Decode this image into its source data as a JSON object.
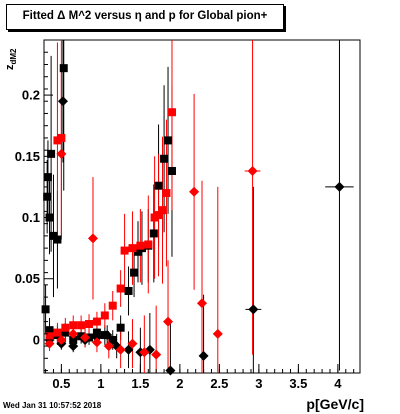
{
  "header": {
    "title": "Fitted Δ M^2 versus η and p for Global pion+"
  },
  "footer": {
    "timestamp": "Wed Jan 31 10:57:52 2018"
  },
  "chart_data": {
    "type": "scatter",
    "title": "Fitted Δ M^2 versus η and p for Global pion+",
    "xlabel": "p[GeV/c]",
    "ylabel": "z_dM2",
    "ylabel_main": "z",
    "ylabel_sub": "dM2",
    "xlim": [
      0.28,
      4.28
    ],
    "ylim": [
      -0.027,
      0.245
    ],
    "xticks": [
      0.5,
      1,
      1.5,
      2,
      2.5,
      3,
      3.5,
      4
    ],
    "xtick_labels": [
      "0.5",
      "1",
      "1.5",
      "2",
      "2.5",
      "3",
      "3.5",
      "4"
    ],
    "yticks": [
      0,
      0.05,
      0.1,
      0.15,
      0.2
    ],
    "ytick_labels": [
      "0",
      "0.05",
      "0.1",
      "0.15",
      "0.2"
    ],
    "grid": false,
    "legend": "none",
    "colors": {
      "black": "#000000",
      "red": "#ff0000"
    },
    "series": [
      {
        "color": "#000000",
        "marker": "square",
        "points": [
          {
            "x": 0.3,
            "y": 0.025,
            "yerr": 0.02
          },
          {
            "x": 0.32,
            "y": 0.117,
            "yerr": 0.03
          },
          {
            "x": 0.33,
            "y": 0.133,
            "yerr": 0.03
          },
          {
            "x": 0.35,
            "y": 0.1,
            "yerr": 0.03
          },
          {
            "x": 0.37,
            "y": 0.152,
            "yerr": 0.08
          },
          {
            "x": 0.4,
            "y": 0.085,
            "yerr": 0.05
          },
          {
            "x": 0.45,
            "y": 0.082,
            "yerr": 0.04
          },
          {
            "x": 0.53,
            "y": 0.222,
            "yerr": 0.1
          },
          {
            "x": 0.35,
            "y": 0.008,
            "yerr": 0.01
          },
          {
            "x": 0.45,
            "y": 0.004,
            "yerr": 0.008
          },
          {
            "x": 0.55,
            "y": 0.006,
            "yerr": 0.008
          },
          {
            "x": 0.65,
            "y": 0.0,
            "yerr": 0.006
          },
          {
            "x": 0.75,
            "y": 0.003,
            "yerr": 0.006
          },
          {
            "x": 0.85,
            "y": 0.002,
            "yerr": 0.006
          },
          {
            "x": 0.95,
            "y": 0.006,
            "yerr": 0.008
          },
          {
            "x": 1.05,
            "y": 0.004,
            "yerr": 0.008
          },
          {
            "x": 1.15,
            "y": 0.0,
            "yerr": 0.008
          },
          {
            "x": 1.25,
            "y": 0.01,
            "yerr": 0.01
          },
          {
            "x": 1.35,
            "y": 0.04,
            "yerr": 0.02
          },
          {
            "x": 1.42,
            "y": 0.055,
            "yerr": 0.02
          },
          {
            "x": 1.47,
            "y": 0.072,
            "yerr": 0.025
          },
          {
            "x": 1.52,
            "y": 0.075,
            "yerr": 0.03
          },
          {
            "x": 1.6,
            "y": 0.077,
            "yerr": 0.03
          },
          {
            "x": 1.67,
            "y": 0.087,
            "yerr": 0.04
          },
          {
            "x": 1.73,
            "y": 0.126,
            "yerr": 0.05
          },
          {
            "x": 1.8,
            "y": 0.148,
            "yerr": 0.06
          },
          {
            "x": 1.85,
            "y": 0.163,
            "yerr": 0.06
          },
          {
            "x": 1.9,
            "y": 0.138,
            "yerr": 0.07
          }
        ]
      },
      {
        "color": "#000000",
        "marker": "diamond",
        "points": [
          {
            "x": 0.52,
            "y": 0.195,
            "yerr": 0.05
          },
          {
            "x": 0.35,
            "y": 0.0,
            "yerr": 0.005
          },
          {
            "x": 0.5,
            "y": -0.003,
            "yerr": 0.005
          },
          {
            "x": 0.65,
            "y": -0.005,
            "yerr": 0.005
          },
          {
            "x": 0.8,
            "y": 0.0,
            "yerr": 0.006
          },
          {
            "x": 0.95,
            "y": 0.002,
            "yerr": 0.006
          },
          {
            "x": 1.08,
            "y": 0.004,
            "yerr": 0.008
          },
          {
            "x": 1.2,
            "y": -0.005,
            "yerr": 0.01
          },
          {
            "x": 1.35,
            "y": -0.008,
            "yerr": 0.015
          },
          {
            "x": 1.5,
            "y": -0.01,
            "yerr": 0.02
          },
          {
            "x": 1.62,
            "y": -0.008,
            "yerr": 0.03
          },
          {
            "x": 1.88,
            "y": -0.025,
            "yerr": 0.04
          },
          {
            "x": 2.3,
            "y": -0.013,
            "yerr": 0.05
          },
          {
            "x": 2.93,
            "y": 0.025,
            "yerr": 0.1,
            "xerr": 0.1
          },
          {
            "x": 4.02,
            "y": 0.125,
            "yerr": 0.15,
            "xerr": 0.18
          }
        ]
      },
      {
        "color": "#ff0000",
        "marker": "square",
        "points": [
          {
            "x": 0.45,
            "y": 0.163,
            "yerr": 0.08
          },
          {
            "x": 0.5,
            "y": 0.165,
            "yerr": 0.08
          },
          {
            "x": 0.35,
            "y": 0.003,
            "yerr": 0.008
          },
          {
            "x": 0.45,
            "y": 0.006,
            "yerr": 0.008
          },
          {
            "x": 0.55,
            "y": 0.01,
            "yerr": 0.008
          },
          {
            "x": 0.65,
            "y": 0.012,
            "yerr": 0.008
          },
          {
            "x": 0.75,
            "y": 0.012,
            "yerr": 0.008
          },
          {
            "x": 0.85,
            "y": 0.013,
            "yerr": 0.008
          },
          {
            "x": 0.95,
            "y": 0.015,
            "yerr": 0.008
          },
          {
            "x": 1.05,
            "y": 0.02,
            "yerr": 0.01
          },
          {
            "x": 1.15,
            "y": 0.028,
            "yerr": 0.012
          },
          {
            "x": 1.25,
            "y": 0.042,
            "yerr": 0.015
          },
          {
            "x": 1.3,
            "y": 0.073,
            "yerr": 0.03
          },
          {
            "x": 1.4,
            "y": 0.075,
            "yerr": 0.03
          },
          {
            "x": 1.5,
            "y": 0.077,
            "yerr": 0.03
          },
          {
            "x": 1.6,
            "y": 0.078,
            "yerr": 0.04
          },
          {
            "x": 1.68,
            "y": 0.1,
            "yerr": 0.05
          },
          {
            "x": 1.73,
            "y": 0.102,
            "yerr": 0.05
          },
          {
            "x": 1.78,
            "y": 0.106,
            "yerr": 0.06
          },
          {
            "x": 1.83,
            "y": 0.12,
            "yerr": 0.06
          },
          {
            "x": 1.9,
            "y": 0.186,
            "yerr": 0.08
          }
        ]
      },
      {
        "color": "#ff0000",
        "marker": "diamond",
        "points": [
          {
            "x": 0.5,
            "y": 0.152,
            "yerr": 0.07
          },
          {
            "x": 0.9,
            "y": 0.083,
            "yerr": 0.05
          },
          {
            "x": 0.35,
            "y": -0.003,
            "yerr": 0.006
          },
          {
            "x": 0.5,
            "y": 0.0,
            "yerr": 0.006
          },
          {
            "x": 0.65,
            "y": 0.005,
            "yerr": 0.006
          },
          {
            "x": 0.8,
            "y": 0.002,
            "yerr": 0.008
          },
          {
            "x": 0.95,
            "y": -0.002,
            "yerr": 0.008
          },
          {
            "x": 1.1,
            "y": -0.005,
            "yerr": 0.01
          },
          {
            "x": 1.25,
            "y": -0.008,
            "yerr": 0.015
          },
          {
            "x": 1.4,
            "y": -0.003,
            "yerr": 0.02
          },
          {
            "x": 1.55,
            "y": -0.01,
            "yerr": 0.03
          },
          {
            "x": 1.7,
            "y": -0.012,
            "yerr": 0.04
          },
          {
            "x": 1.85,
            "y": 0.015,
            "yerr": 0.05
          },
          {
            "x": 2.18,
            "y": 0.121,
            "yerr": 0.08
          },
          {
            "x": 2.28,
            "y": 0.03,
            "yerr": 0.1
          },
          {
            "x": 2.48,
            "y": 0.005,
            "yerr": 0.12
          },
          {
            "x": 2.92,
            "y": 0.138,
            "yerr": 0.15,
            "xerr": 0.1
          }
        ]
      }
    ]
  }
}
